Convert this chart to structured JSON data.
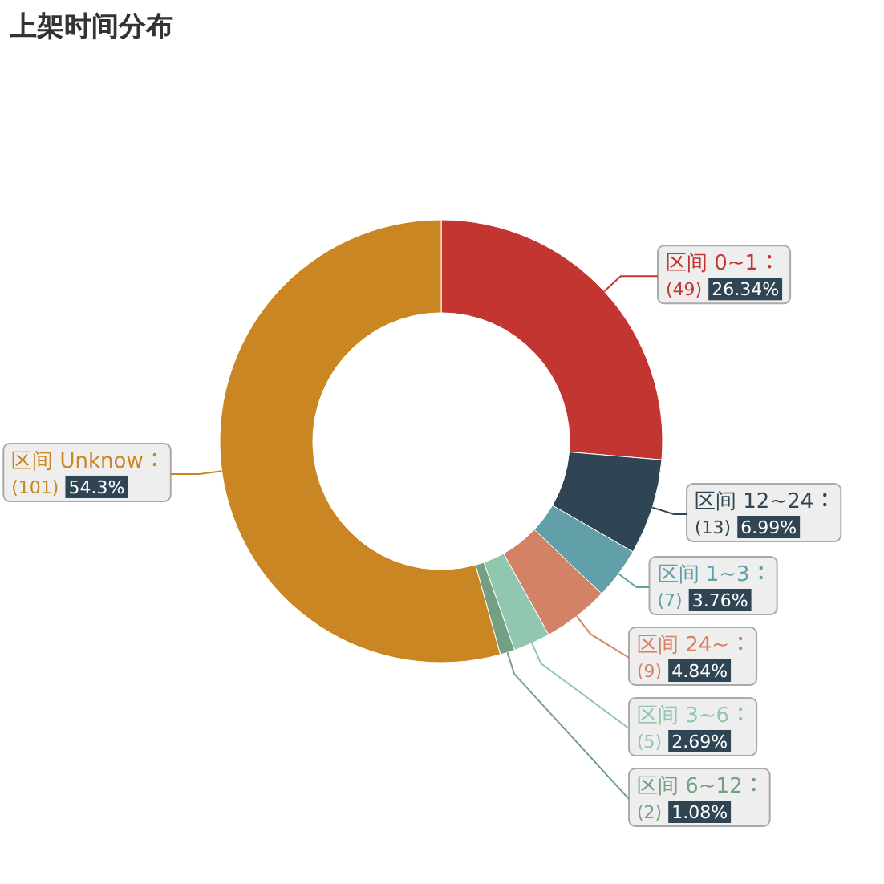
{
  "chart_data": {
    "type": "donut",
    "title": "上架时间分布",
    "categories": [
      "区间 0~1",
      "区间 12~24",
      "区间 1~3",
      "区间 24~",
      "区间 3~6",
      "区间 6~12",
      "区间 Unknow"
    ],
    "values": [
      49,
      13,
      7,
      9,
      5,
      2,
      101
    ],
    "value_labels": [
      "(49) 26.34%",
      "(13) 6.99%",
      "(7) 3.76%",
      "(9) 4.84%",
      "(5) 2.69%",
      "(2) 1.08%",
      "(101) 54.3%"
    ],
    "colors": [
      "#c23531",
      "#2f4554",
      "#61a0a8",
      "#d48265",
      "#91c7ae",
      "#749f83",
      "#ca8622"
    ]
  }
}
